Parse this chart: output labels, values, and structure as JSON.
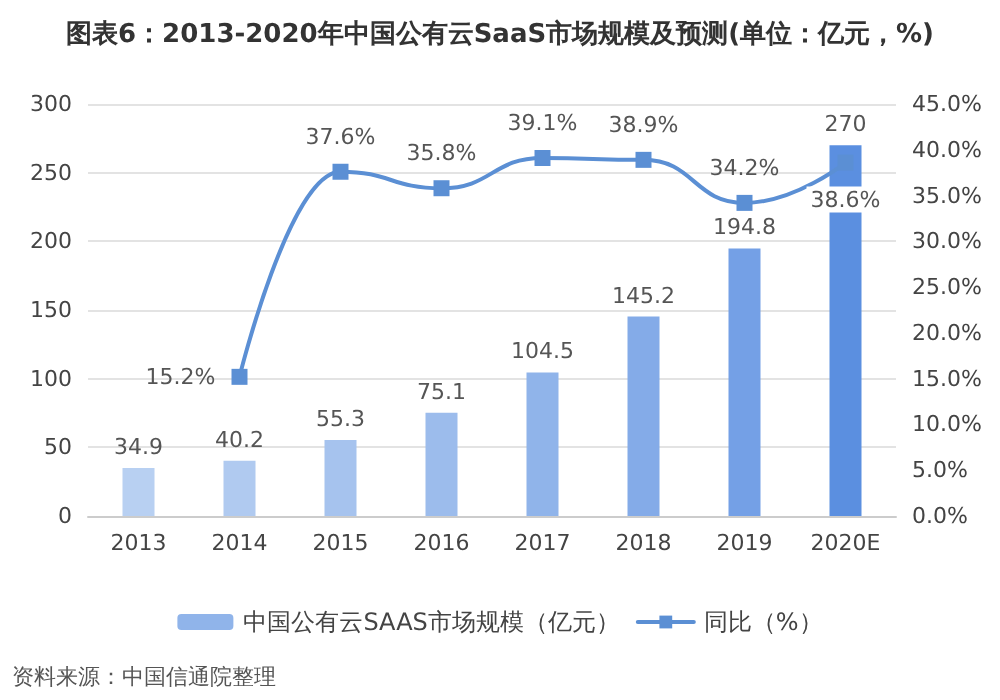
{
  "chart_data": {
    "type": "bar",
    "title": "图表6：2013-2020年中国公有云SaaS市场规模及预测(单位：亿元，%)",
    "categories": [
      "2013",
      "2014",
      "2015",
      "2016",
      "2017",
      "2018",
      "2019",
      "2020E"
    ],
    "series": [
      {
        "name": "中国公有云SAAS市场规模（亿元）",
        "color": "#90b4ea",
        "colors": [
          "#b8d0f2",
          "#b0caf0",
          "#a6c3ee",
          "#9cbcec",
          "#90b4ea",
          "#84abe8",
          "#74a0e6",
          "#5b8fe0"
        ],
        "values": [
          34.9,
          40.2,
          55.3,
          75.1,
          104.5,
          145.2,
          194.8,
          270
        ],
        "value_labels": [
          "34.9",
          "40.2",
          "55.3",
          "75.1",
          "104.5",
          "145.2",
          "194.8",
          "270"
        ]
      },
      {
        "name": "同比（%）",
        "type": "line",
        "axis": "y2",
        "color": "#5b8fd4",
        "marker": "square",
        "values": [
          null,
          15.2,
          37.6,
          35.8,
          39.1,
          38.9,
          34.2,
          38.6
        ],
        "value_labels": [
          null,
          "15.2%",
          "37.6%",
          "35.8%",
          "39.1%",
          "38.9%",
          "34.2%",
          "38.6%"
        ]
      }
    ],
    "ylim": [
      0,
      300
    ],
    "yticks": [
      0,
      50,
      100,
      150,
      200,
      250,
      300
    ],
    "y2lim": [
      0,
      45
    ],
    "y2ticks": [
      {
        "value": 0,
        "label": "0.0%"
      },
      {
        "value": 5,
        "label": "5.0%"
      },
      {
        "value": 10,
        "label": "10.0%"
      },
      {
        "value": 15,
        "label": "15.0%"
      },
      {
        "value": 20,
        "label": "20.0%"
      },
      {
        "value": 25,
        "label": "25.0%"
      },
      {
        "value": 30,
        "label": "30.0%"
      },
      {
        "value": 35,
        "label": "35.0%"
      },
      {
        "value": 40,
        "label": "40.0%"
      },
      {
        "value": 45,
        "label": "45.0%"
      }
    ],
    "grid": "y",
    "legend": "bottom",
    "annotations": [
      "资料来源：中国信通院整理"
    ]
  }
}
